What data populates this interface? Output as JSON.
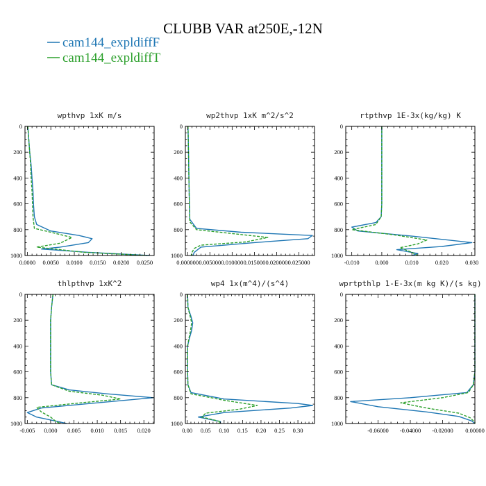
{
  "figure": {
    "title": "CLUBB VAR at250E,-12N",
    "legend": [
      {
        "name": "cam144_expldiffF",
        "color": "#1f77b4",
        "dash": "solid"
      },
      {
        "name": "cam144_expldiffT",
        "color": "#2ca02c",
        "dash": "dashed"
      }
    ]
  },
  "chart_data": [
    {
      "type": "line",
      "title": "wpthvp  1xK m/s",
      "xlim": [
        -0.0005,
        0.027
      ],
      "ylim": [
        1000,
        0
      ],
      "grid": false,
      "xticks": [
        0,
        0.005,
        0.01,
        0.015,
        0.02,
        0.025
      ],
      "xticklabels": [
        "0.0000",
        "0.0050",
        "0.0100",
        "0.0150",
        "0.0200",
        "0.0250"
      ],
      "yticks": [
        0,
        200,
        400,
        600,
        800,
        1000
      ],
      "yticklabels": [
        "0",
        "200",
        "400",
        "600",
        "800",
        "1000"
      ],
      "series": [
        {
          "name": "cam144_expldiffF",
          "color": "#1f77b4",
          "dash": "solid",
          "points": [
            [
              0.0001,
              0
            ],
            [
              0.0003,
              100
            ],
            [
              0.0005,
              200
            ],
            [
              0.0008,
              300
            ],
            [
              0.001,
              400
            ],
            [
              0.0012,
              500
            ],
            [
              0.0013,
              600
            ],
            [
              0.0015,
              700
            ],
            [
              0.002,
              760
            ],
            [
              0.005,
              810
            ],
            [
              0.011,
              845
            ],
            [
              0.0138,
              870
            ],
            [
              0.013,
              900
            ],
            [
              0.007,
              935
            ],
            [
              0.003,
              950
            ],
            [
              0.013,
              975
            ],
            [
              0.026,
              1000
            ]
          ]
        },
        {
          "name": "cam144_expldiffT",
          "color": "#2ca02c",
          "dash": "dashed",
          "points": [
            [
              0.0001,
              0
            ],
            [
              0.0003,
              100
            ],
            [
              0.0005,
              200
            ],
            [
              0.0007,
              300
            ],
            [
              0.0008,
              400
            ],
            [
              0.001,
              500
            ],
            [
              0.0011,
              600
            ],
            [
              0.0012,
              700
            ],
            [
              0.0015,
              790
            ],
            [
              0.005,
              820
            ],
            [
              0.0095,
              860
            ],
            [
              0.007,
              905
            ],
            [
              0.002,
              935
            ],
            [
              0.007,
              955
            ],
            [
              0.012,
              975
            ],
            [
              0.0255,
              1000
            ]
          ]
        }
      ]
    },
    {
      "type": "line",
      "title": "wp2thvp  1xK m^2/s^2",
      "xlim": [
        -0.0005,
        0.0285
      ],
      "ylim": [
        1000,
        0
      ],
      "grid": false,
      "xticks": [
        0,
        0.005,
        0.01,
        0.015,
        0.02,
        0.025
      ],
      "xticklabels": [
        "0.000000",
        "0.005000",
        "0.010000",
        "0.015000",
        "0.020000",
        "0.025000"
      ],
      "yticks": [
        0,
        200,
        400,
        600,
        800,
        1000
      ],
      "yticklabels": [
        "0",
        "200",
        "400",
        "600",
        "800",
        "1000"
      ],
      "series": [
        {
          "name": "cam144_expldiffF",
          "color": "#1f77b4",
          "dash": "solid",
          "points": [
            [
              0.0001,
              0
            ],
            [
              0.0002,
              200
            ],
            [
              0.0003,
              400
            ],
            [
              0.0004,
              600
            ],
            [
              0.0005,
              720
            ],
            [
              0.002,
              790
            ],
            [
              0.012,
              820
            ],
            [
              0.028,
              845
            ],
            [
              0.027,
              870
            ],
            [
              0.015,
              900
            ],
            [
              0.003,
              935
            ],
            [
              0.0015,
              975
            ],
            [
              0.0012,
              1000
            ]
          ]
        },
        {
          "name": "cam144_expldiffT",
          "color": "#2ca02c",
          "dash": "dashed",
          "points": [
            [
              0.0001,
              0
            ],
            [
              0.0002,
              200
            ],
            [
              0.0003,
              400
            ],
            [
              0.0004,
              600
            ],
            [
              0.0005,
              740
            ],
            [
              0.002,
              800
            ],
            [
              0.01,
              830
            ],
            [
              0.018,
              860
            ],
            [
              0.013,
              895
            ],
            [
              0.003,
              920
            ],
            [
              0.0015,
              945
            ],
            [
              0.001,
              975
            ],
            [
              0.0008,
              1000
            ]
          ]
        }
      ]
    },
    {
      "type": "line",
      "title": "rtpthvp  1E-3x(kg/kg) K",
      "xlim": [
        -0.012,
        0.031
      ],
      "ylim": [
        1000,
        0
      ],
      "grid": false,
      "xticks": [
        -0.01,
        0,
        0.01,
        0.02,
        0.03
      ],
      "xticklabels": [
        "-0.010",
        "0.000",
        "0.010",
        "0.020",
        "0.030"
      ],
      "yticks": [
        0,
        200,
        400,
        600,
        800,
        1000
      ],
      "yticklabels": [
        "0",
        "200",
        "400",
        "600",
        "800",
        "1000"
      ],
      "series": [
        {
          "name": "cam144_expldiffF",
          "color": "#1f77b4",
          "dash": "solid",
          "points": [
            [
              0,
              0
            ],
            [
              0,
              200
            ],
            [
              0,
              400
            ],
            [
              0,
              600
            ],
            [
              -0.0002,
              700
            ],
            [
              -0.002,
              745
            ],
            [
              -0.01,
              780
            ],
            [
              -0.008,
              810
            ],
            [
              0.01,
              850
            ],
            [
              0.03,
              900
            ],
            [
              0.02,
              930
            ],
            [
              0.005,
              955
            ],
            [
              0.012,
              985
            ],
            [
              0.01,
              1000
            ]
          ]
        },
        {
          "name": "cam144_expldiffT",
          "color": "#2ca02c",
          "dash": "dashed",
          "points": [
            [
              0,
              0
            ],
            [
              0,
              200
            ],
            [
              0,
              400
            ],
            [
              0,
              600
            ],
            [
              -0.0002,
              700
            ],
            [
              -0.002,
              760
            ],
            [
              -0.01,
              800
            ],
            [
              0.004,
              840
            ],
            [
              0.015,
              880
            ],
            [
              0.012,
              910
            ],
            [
              0.006,
              940
            ],
            [
              0.01,
              975
            ],
            [
              0.012,
              1000
            ]
          ]
        }
      ]
    },
    {
      "type": "line",
      "title": "thlpthvp  1xK^2",
      "xlim": [
        -0.0055,
        0.0222
      ],
      "ylim": [
        1000,
        0
      ],
      "grid": false,
      "xticks": [
        -0.005,
        0,
        0.005,
        0.01,
        0.015,
        0.02
      ],
      "xticklabels": [
        "-0.005",
        "0.000",
        "0.005",
        "0.010",
        "0.015",
        "0.020"
      ],
      "yticks": [
        0,
        200,
        400,
        600,
        800,
        1000
      ],
      "yticklabels": [
        "0",
        "200",
        "400",
        "600",
        "800",
        "1000"
      ],
      "series": [
        {
          "name": "cam144_expldiffF",
          "color": "#1f77b4",
          "dash": "solid",
          "points": [
            [
              0.0005,
              0
            ],
            [
              0.0002,
              100
            ],
            [
              0,
              200
            ],
            [
              0,
              400
            ],
            [
              0,
              600
            ],
            [
              0.0002,
              700
            ],
            [
              0.004,
              740
            ],
            [
              0.012,
              770
            ],
            [
              0.022,
              800
            ],
            [
              0.01,
              840
            ],
            [
              -0.002,
              880
            ],
            [
              -0.005,
              915
            ],
            [
              -0.003,
              950
            ],
            [
              0.001,
              980
            ],
            [
              0.0035,
              1000
            ]
          ]
        },
        {
          "name": "cam144_expldiffT",
          "color": "#2ca02c",
          "dash": "dashed",
          "points": [
            [
              0.0005,
              0
            ],
            [
              0.0002,
              100
            ],
            [
              0,
              200
            ],
            [
              0,
              400
            ],
            [
              0,
              600
            ],
            [
              0.0002,
              700
            ],
            [
              0.004,
              750
            ],
            [
              0.011,
              780
            ],
            [
              0.015,
              810
            ],
            [
              0.005,
              845
            ],
            [
              -0.003,
              875
            ],
            [
              -0.002,
              910
            ],
            [
              0,
              950
            ],
            [
              0.001,
              980
            ],
            [
              0.002,
              1000
            ]
          ]
        }
      ]
    },
    {
      "type": "line",
      "title": "wp4  1x(m^4)/(s^4)",
      "xlim": [
        -0.005,
        0.345
      ],
      "ylim": [
        1000,
        0
      ],
      "grid": false,
      "xticks": [
        0,
        0.05,
        0.1,
        0.15,
        0.2,
        0.25,
        0.3
      ],
      "xticklabels": [
        "0.00",
        "0.05",
        "0.10",
        "0.15",
        "0.20",
        "0.25",
        "0.30"
      ],
      "yticks": [
        0,
        200,
        400,
        600,
        800,
        1000
      ],
      "yticklabels": [
        "0",
        "200",
        "400",
        "600",
        "800",
        "1000"
      ],
      "series": [
        {
          "name": "cam144_expldiffF",
          "color": "#1f77b4",
          "dash": "solid",
          "points": [
            [
              0.001,
              0
            ],
            [
              0.002,
              100
            ],
            [
              0.01,
              170
            ],
            [
              0.015,
              220
            ],
            [
              0.012,
              280
            ],
            [
              0.005,
              350
            ],
            [
              0.001,
              400
            ],
            [
              0.001,
              500
            ],
            [
              0.001,
              600
            ],
            [
              0.002,
              700
            ],
            [
              0.01,
              760
            ],
            [
              0.1,
              810
            ],
            [
              0.3,
              845
            ],
            [
              0.34,
              860
            ],
            [
              0.28,
              880
            ],
            [
              0.1,
              915
            ],
            [
              0.03,
              950
            ],
            [
              0.09,
              985
            ],
            [
              0.09,
              1000
            ]
          ]
        },
        {
          "name": "cam144_expldiffT",
          "color": "#2ca02c",
          "dash": "dashed",
          "points": [
            [
              0.001,
              0
            ],
            [
              0.002,
              100
            ],
            [
              0.008,
              170
            ],
            [
              0.012,
              220
            ],
            [
              0.009,
              280
            ],
            [
              0.004,
              350
            ],
            [
              0.001,
              400
            ],
            [
              0.001,
              500
            ],
            [
              0.001,
              600
            ],
            [
              0.002,
              700
            ],
            [
              0.01,
              770
            ],
            [
              0.1,
              820
            ],
            [
              0.19,
              860
            ],
            [
              0.14,
              890
            ],
            [
              0.05,
              920
            ],
            [
              0.04,
              950
            ],
            [
              0.09,
              985
            ],
            [
              0.085,
              1000
            ]
          ]
        }
      ]
    },
    {
      "type": "line",
      "title": "wprtpthlp  1-E-3x(m kg K)/(s kg)",
      "xlim": [
        -0.08,
        0.0
      ],
      "ylim": [
        1000,
        0
      ],
      "grid": false,
      "xticks": [
        -0.06,
        -0.04,
        -0.02,
        0
      ],
      "xticklabels": [
        "-0.06000",
        "-0.04000",
        "-0.02000",
        "0.00000"
      ],
      "yticks": [
        0,
        200,
        400,
        600,
        800,
        1000
      ],
      "yticklabels": [
        "0",
        "200",
        "400",
        "600",
        "800",
        "1000"
      ],
      "series": [
        {
          "name": "cam144_expldiffF",
          "color": "#1f77b4",
          "dash": "solid",
          "points": [
            [
              0,
              0
            ],
            [
              0,
              200
            ],
            [
              0,
              400
            ],
            [
              0,
              600
            ],
            [
              -0.001,
              700
            ],
            [
              -0.005,
              760
            ],
            [
              -0.04,
              800
            ],
            [
              -0.077,
              830
            ],
            [
              -0.06,
              870
            ],
            [
              -0.03,
              910
            ],
            [
              -0.01,
              945
            ],
            [
              -0.002,
              980
            ],
            [
              0,
              1000
            ]
          ]
        },
        {
          "name": "cam144_expldiffT",
          "color": "#2ca02c",
          "dash": "dashed",
          "points": [
            [
              0,
              0
            ],
            [
              0,
              200
            ],
            [
              0,
              400
            ],
            [
              0,
              600
            ],
            [
              -0.001,
              700
            ],
            [
              -0.004,
              760
            ],
            [
              -0.02,
              800
            ],
            [
              -0.046,
              840
            ],
            [
              -0.03,
              880
            ],
            [
              -0.01,
              920
            ],
            [
              -0.003,
              955
            ],
            [
              0,
              990
            ],
            [
              0,
              1000
            ]
          ]
        }
      ]
    }
  ]
}
